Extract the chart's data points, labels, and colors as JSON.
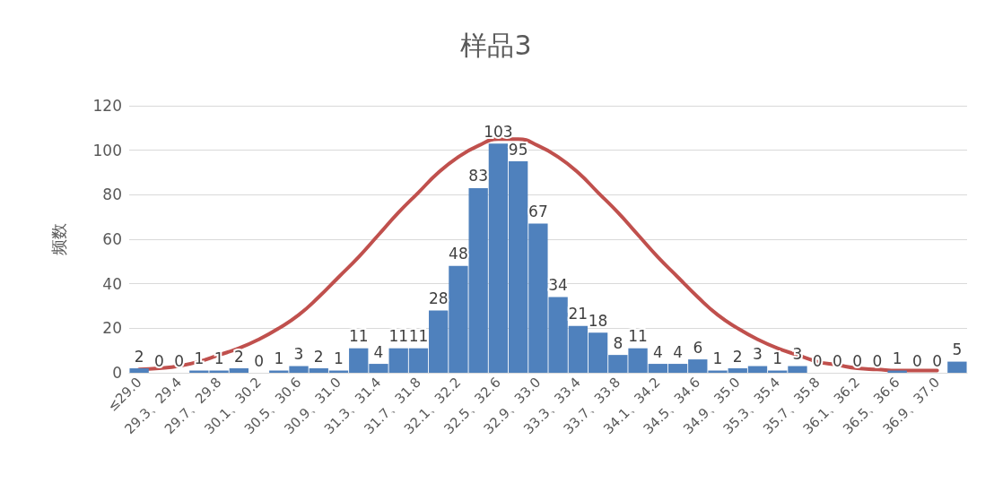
{
  "chart_data": {
    "type": "bar",
    "title": "样品3",
    "ylabel": "频数",
    "categories": [
      "≤29.0",
      null,
      "29.3、29.4",
      null,
      "29.7、29.8",
      null,
      "30.1、30.2",
      null,
      "30.5、30.6",
      null,
      "30.9、31.0",
      null,
      "31.3、31.4",
      null,
      "31.7、31.8",
      null,
      "32.1、32.2",
      null,
      "32.5、32.6",
      null,
      "32.9、33.0",
      null,
      "33.3、33.4",
      null,
      "33.7、33.8",
      null,
      "34.1、34.2",
      null,
      "34.5、34.6",
      null,
      "34.9、35.0",
      null,
      "35.3、35.4",
      null,
      "35.7、35.8",
      null,
      "36.1、36.2",
      null,
      "36.5、36.6",
      null,
      "36.9、37.0",
      null
    ],
    "series": [
      {
        "color": "#4f81bd",
        "values": [
          2,
          0,
          0,
          1,
          1,
          2,
          0,
          1,
          3,
          2,
          1,
          11,
          4,
          11,
          11,
          28,
          48,
          83,
          103,
          95,
          67,
          34,
          21,
          18,
          8,
          11,
          4,
          4,
          6,
          1,
          2,
          3,
          1,
          3,
          0,
          0,
          0,
          0,
          1,
          0,
          0,
          5
        ]
      },
      {
        "type": "line",
        "color": "#c0504d",
        "values": [
          1.5,
          2,
          3,
          5,
          8,
          11,
          15,
          20,
          26,
          34,
          43,
          52,
          62,
          72,
          81,
          90,
          97,
          102,
          105,
          105,
          102,
          97,
          90,
          81,
          72,
          62,
          52,
          43,
          34,
          26,
          20,
          15,
          11,
          8,
          5,
          3.5,
          2,
          1.5,
          1,
          1,
          1,
          null
        ],
        "value_labels": [
          null,
          null,
          null,
          null,
          null,
          null,
          null,
          null,
          null,
          null,
          null,
          null,
          null,
          null,
          null,
          null,
          null,
          null,
          null,
          null,
          null,
          null,
          null,
          null,
          null,
          null,
          null,
          null,
          null,
          null,
          null,
          null,
          null,
          null,
          null,
          null,
          null,
          null,
          null,
          null,
          null,
          null
        ]
      }
    ],
    "ylim": [
      0,
      120
    ],
    "yticks": [
      0,
      20,
      40,
      60,
      80,
      100,
      120
    ],
    "grid": "y",
    "data_labels": true,
    "marker": "none",
    "line_style": "solid"
  }
}
